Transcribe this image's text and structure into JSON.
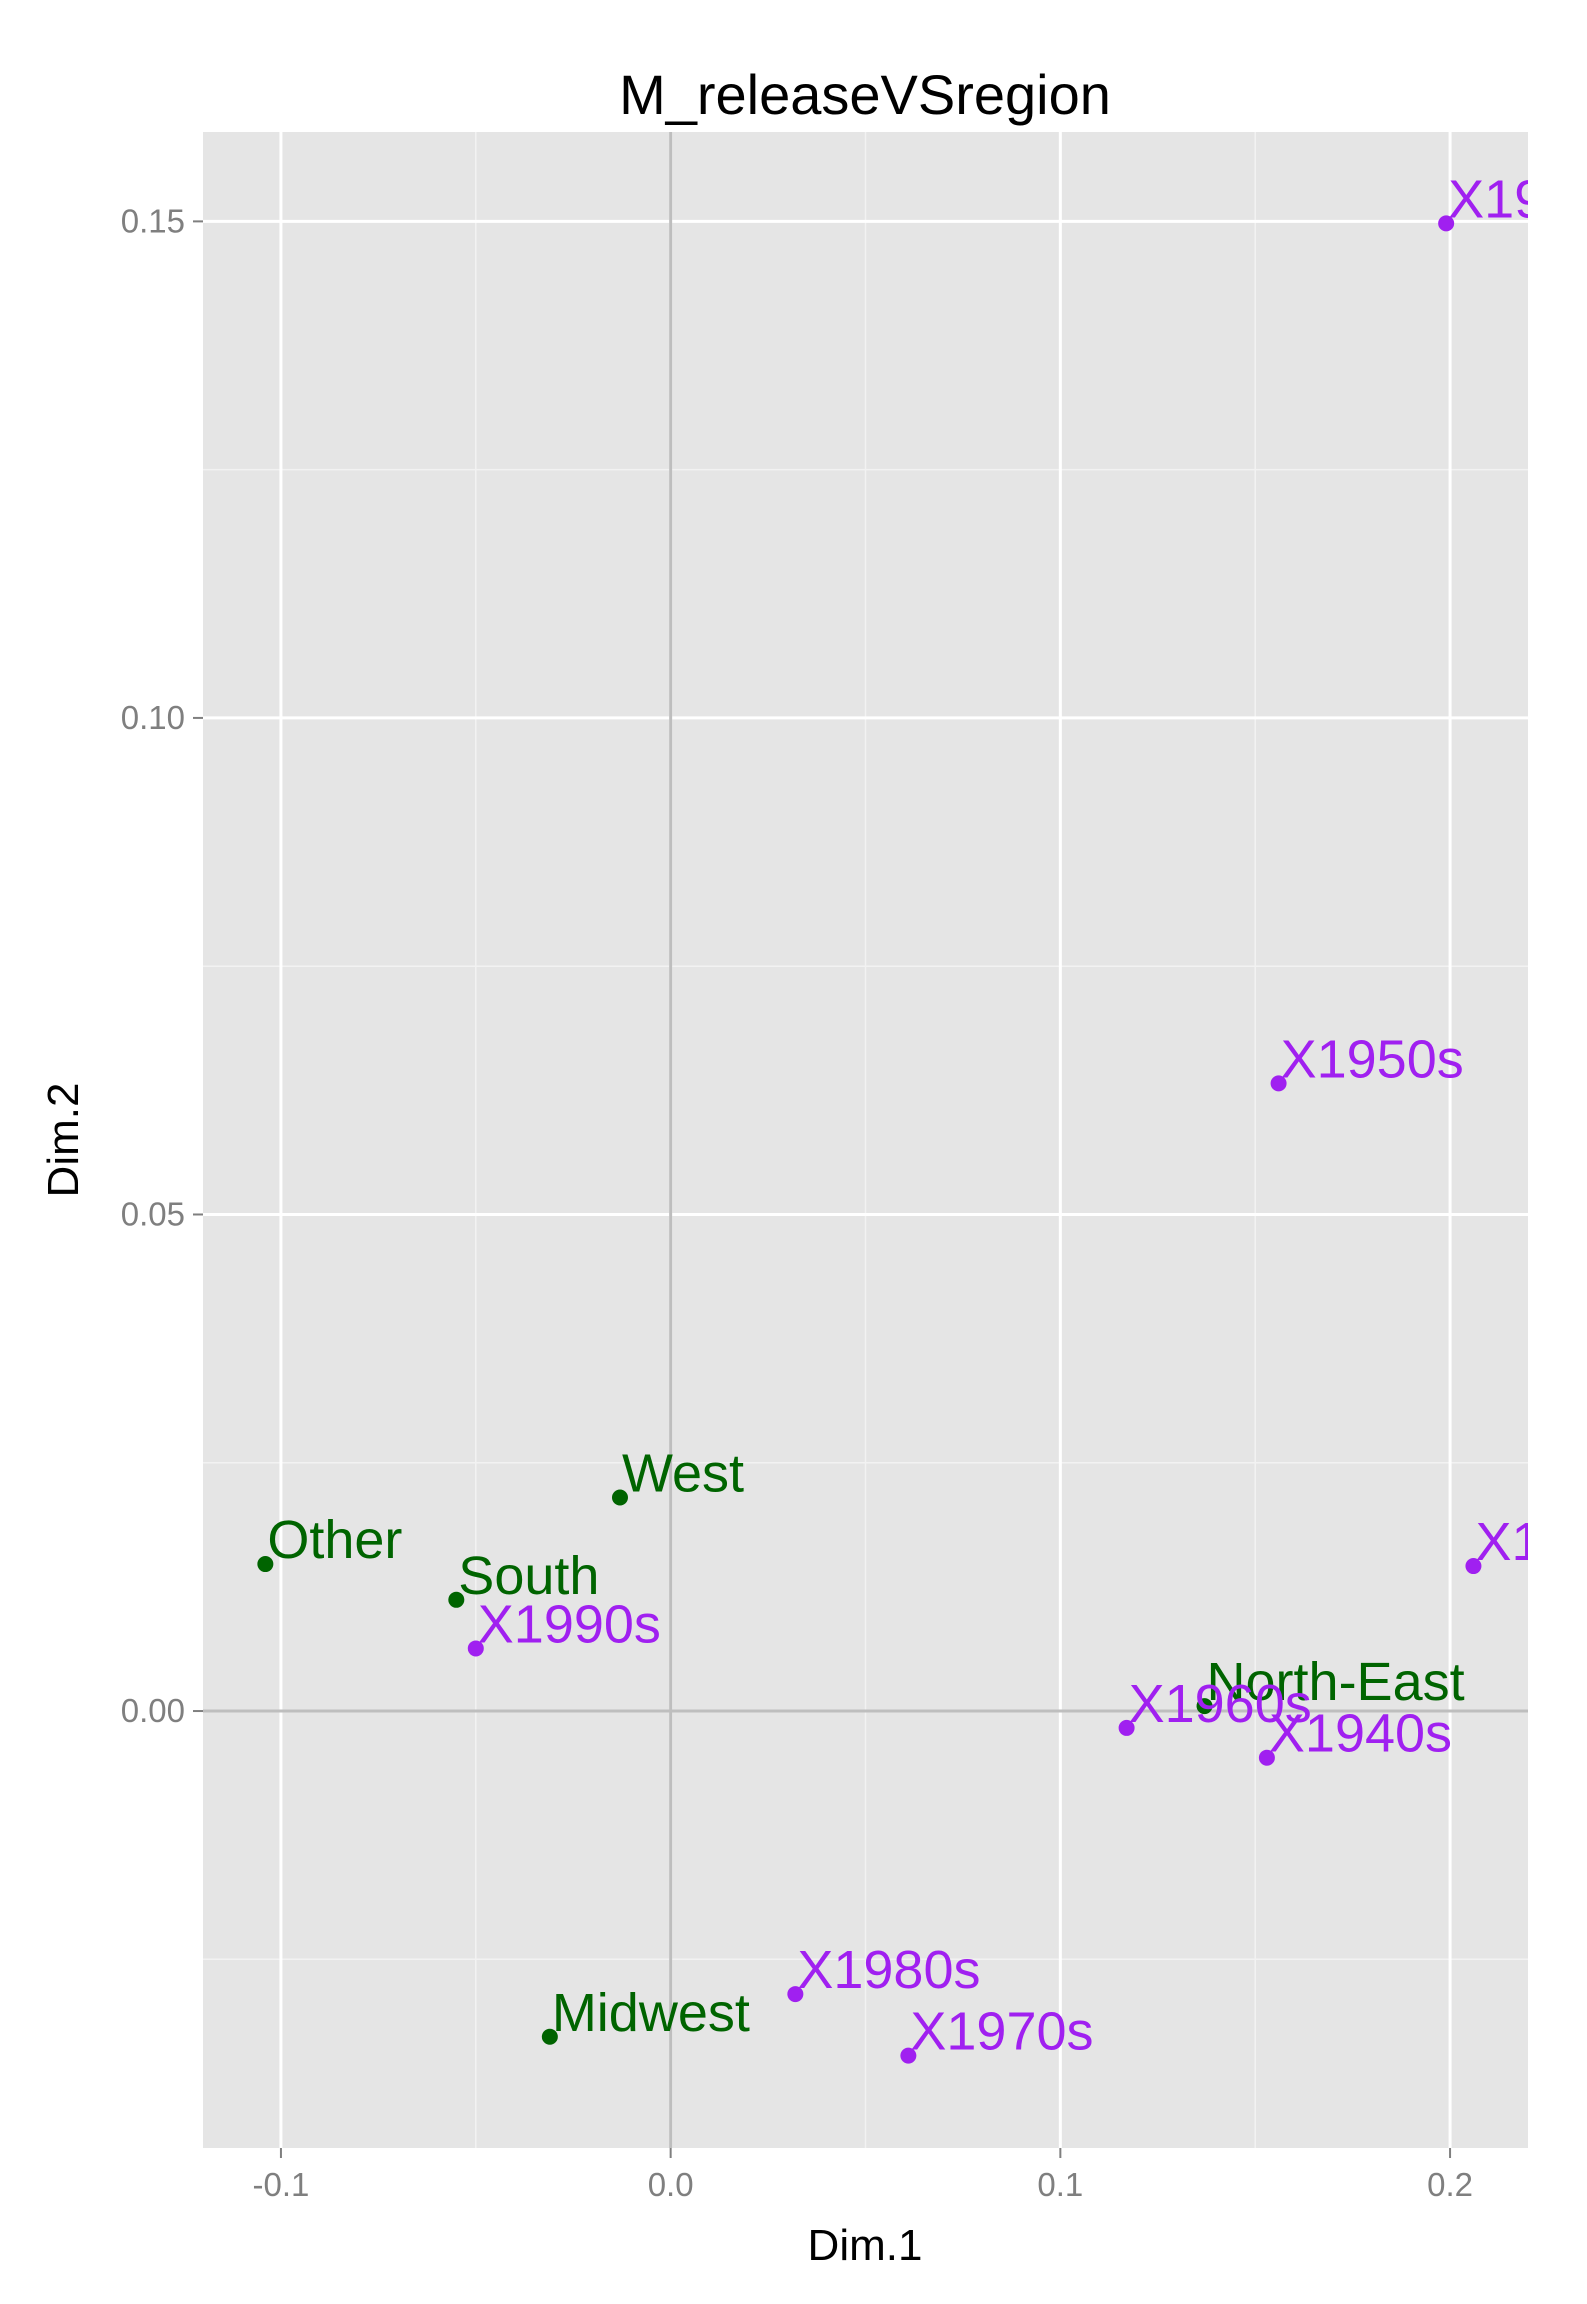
{
  "chart_data": {
    "type": "scatter",
    "title": "M_releaseVSregion",
    "xlabel": "Dim.1",
    "ylabel": "Dim.2",
    "xlim": [
      -0.12,
      0.22
    ],
    "ylim": [
      -0.044,
      0.159
    ],
    "x_ticks": [
      -0.1,
      0.0,
      0.1,
      0.2
    ],
    "x_tick_labels": [
      "-0.1",
      "0.0",
      "0.1",
      "0.2"
    ],
    "y_ticks": [
      0.0,
      0.05,
      0.1,
      0.15
    ],
    "y_tick_labels": [
      "0.00",
      "0.05",
      "0.10",
      "0.15"
    ],
    "grid": true,
    "reference_lines": {
      "x": 0,
      "y": 0
    },
    "colors": {
      "region": "#006400",
      "release": "#a020f0",
      "panel": "#e5e5e5",
      "grid_major": "#ffffff",
      "grid_minor": "#f2f2f2",
      "reference": "#bebebe"
    },
    "series": [
      {
        "group": "region",
        "color": "#006400",
        "points": [
          {
            "label": "West",
            "x": -0.013,
            "y": 0.0215
          },
          {
            "label": "Other",
            "x": -0.104,
            "y": 0.0148
          },
          {
            "label": "South",
            "x": -0.055,
            "y": 0.0112
          },
          {
            "label": "North-East",
            "x": 0.137,
            "y": 0.0005
          },
          {
            "label": "Midwest",
            "x": -0.031,
            "y": -0.0328
          }
        ]
      },
      {
        "group": "release",
        "color": "#a020f0",
        "points": [
          {
            "label": "X19",
            "x": 0.199,
            "y": 0.1498
          },
          {
            "label": "X1950s",
            "x": 0.156,
            "y": 0.0632
          },
          {
            "label": "X1",
            "x": 0.206,
            "y": 0.0146
          },
          {
            "label": "X1990s",
            "x": -0.05,
            "y": 0.0063
          },
          {
            "label": "X1960s",
            "x": 0.117,
            "y": -0.0017
          },
          {
            "label": "X1940s",
            "x": 0.153,
            "y": -0.0047
          },
          {
            "label": "X1980s",
            "x": 0.032,
            "y": -0.0285
          },
          {
            "label": "X1970s",
            "x": 0.061,
            "y": -0.0347
          }
        ]
      }
    ]
  }
}
